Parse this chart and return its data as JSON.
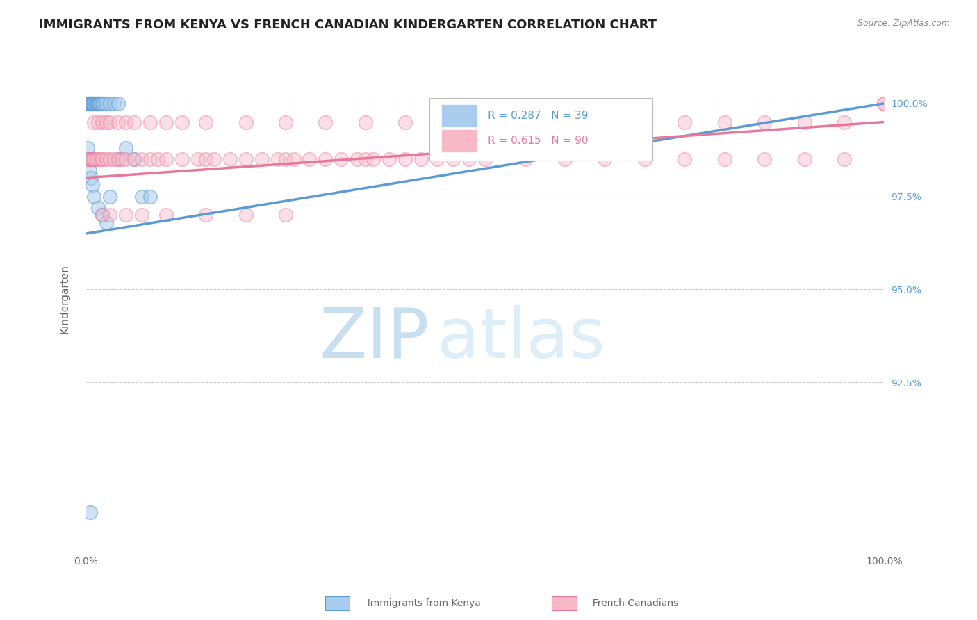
{
  "title": "IMMIGRANTS FROM KENYA VS FRENCH CANADIAN KINDERGARTEN CORRELATION CHART",
  "source_text": "Source: ZipAtlas.com",
  "ylabel": "Kindergarten",
  "xlim": [
    0.0,
    100.0
  ],
  "ylim": [
    88.0,
    101.5
  ],
  "yticks": [
    92.5,
    95.0,
    97.5,
    100.0
  ],
  "ytick_labels": [
    "92.5%",
    "95.0%",
    "97.5%",
    "100.0%"
  ],
  "xticks": [
    0.0,
    100.0
  ],
  "xtick_labels": [
    "0.0%",
    "100.0%"
  ],
  "watermark_line1": "ZIP",
  "watermark_line2": "atlas",
  "blue_color": "#5b9bd5",
  "pink_color": "#e8789a",
  "blue_scatter_x": [
    0.3,
    0.4,
    0.5,
    0.5,
    0.6,
    0.7,
    0.8,
    0.9,
    1.0,
    1.1,
    1.2,
    1.3,
    1.4,
    1.5,
    1.6,
    1.7,
    1.8,
    2.0,
    2.2,
    2.5,
    3.0,
    3.5,
    4.0,
    0.2,
    0.3,
    0.4,
    0.6,
    0.8,
    1.0,
    1.5,
    2.0,
    2.5,
    3.0,
    4.0,
    5.0,
    6.0,
    7.0,
    8.0,
    0.5
  ],
  "blue_scatter_y": [
    100.0,
    100.0,
    100.0,
    100.0,
    100.0,
    100.0,
    100.0,
    100.0,
    100.0,
    100.0,
    100.0,
    100.0,
    100.0,
    100.0,
    100.0,
    100.0,
    100.0,
    100.0,
    100.0,
    100.0,
    100.0,
    100.0,
    100.0,
    98.8,
    98.5,
    98.2,
    98.0,
    97.8,
    97.5,
    97.2,
    97.0,
    96.8,
    97.5,
    98.5,
    98.8,
    98.5,
    97.5,
    97.5,
    89.0
  ],
  "pink_scatter_x": [
    0.3,
    0.5,
    0.7,
    0.8,
    1.0,
    1.2,
    1.5,
    1.8,
    2.0,
    2.5,
    3.0,
    3.5,
    4.0,
    4.5,
    5.0,
    6.0,
    7.0,
    8.0,
    9.0,
    10.0,
    12.0,
    14.0,
    15.0,
    16.0,
    18.0,
    20.0,
    22.0,
    24.0,
    25.0,
    26.0,
    28.0,
    30.0,
    32.0,
    34.0,
    35.0,
    36.0,
    38.0,
    40.0,
    42.0,
    44.0,
    46.0,
    48.0,
    50.0,
    55.0,
    60.0,
    65.0,
    70.0,
    75.0,
    80.0,
    85.0,
    90.0,
    95.0,
    100.0,
    1.0,
    1.5,
    2.0,
    2.5,
    3.0,
    4.0,
    5.0,
    6.0,
    8.0,
    10.0,
    12.0,
    15.0,
    20.0,
    25.0,
    30.0,
    35.0,
    40.0,
    45.0,
    50.0,
    55.0,
    60.0,
    65.0,
    70.0,
    75.0,
    80.0,
    85.0,
    90.0,
    95.0,
    100.0,
    2.0,
    3.0,
    5.0,
    7.0,
    10.0,
    15.0,
    20.0,
    25.0
  ],
  "pink_scatter_y": [
    98.5,
    98.5,
    98.5,
    98.5,
    98.5,
    98.5,
    98.5,
    98.5,
    98.5,
    98.5,
    98.5,
    98.5,
    98.5,
    98.5,
    98.5,
    98.5,
    98.5,
    98.5,
    98.5,
    98.5,
    98.5,
    98.5,
    98.5,
    98.5,
    98.5,
    98.5,
    98.5,
    98.5,
    98.5,
    98.5,
    98.5,
    98.5,
    98.5,
    98.5,
    98.5,
    98.5,
    98.5,
    98.5,
    98.5,
    98.5,
    98.5,
    98.5,
    98.5,
    98.5,
    98.5,
    98.5,
    98.5,
    98.5,
    98.5,
    98.5,
    98.5,
    98.5,
    100.0,
    99.5,
    99.5,
    99.5,
    99.5,
    99.5,
    99.5,
    99.5,
    99.5,
    99.5,
    99.5,
    99.5,
    99.5,
    99.5,
    99.5,
    99.5,
    99.5,
    99.5,
    99.5,
    99.5,
    99.5,
    99.5,
    99.5,
    99.5,
    99.5,
    99.5,
    99.5,
    99.5,
    99.5,
    100.0,
    97.0,
    97.0,
    97.0,
    97.0,
    97.0,
    97.0,
    97.0,
    97.0
  ],
  "title_fontsize": 13,
  "axis_label_fontsize": 11,
  "tick_fontsize": 10,
  "watermark_color": "#c8dff0",
  "background_color": "#ffffff",
  "grid_color": "#cccccc",
  "right_tick_color": "#5b9bd5",
  "blue_trend_x0": 0.0,
  "blue_trend_y0": 96.5,
  "blue_trend_x1": 100.0,
  "blue_trend_y1": 100.0,
  "pink_trend_x0": 0.0,
  "pink_trend_y0": 98.0,
  "pink_trend_x1": 100.0,
  "pink_trend_y1": 99.5
}
